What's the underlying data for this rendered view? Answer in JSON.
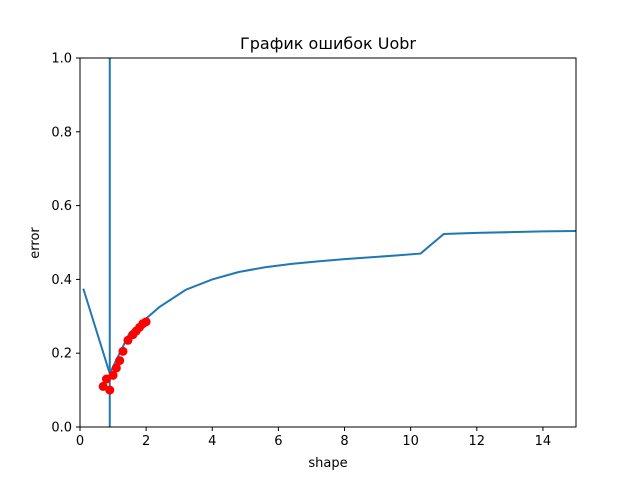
{
  "chart_data": {
    "type": "line",
    "title": "График ошибок Uobr",
    "xlabel": "shape",
    "ylabel": "error",
    "xlim": [
      0,
      15
    ],
    "ylim": [
      0,
      1
    ],
    "xticks": [
      "0",
      "2",
      "4",
      "6",
      "8",
      "10",
      "12",
      "14"
    ],
    "yticks": [
      "0.0",
      "0.2",
      "0.4",
      "0.6",
      "0.8",
      "1.0"
    ],
    "xtick_values": [
      0,
      2,
      4,
      6,
      8,
      10,
      12,
      14
    ],
    "ytick_values": [
      0.0,
      0.2,
      0.4,
      0.6,
      0.8,
      1.0
    ],
    "grid": false,
    "series": [
      {
        "kind": "line",
        "color": "#1f77b4",
        "x": [
          0.1,
          0.9,
          1.5,
          2.4,
          3.2,
          4.0,
          4.8,
          5.6,
          6.4,
          7.2,
          8.0,
          8.8,
          9.6,
          10.3,
          11.0,
          12.0,
          13.0,
          14.0,
          15.0
        ],
        "y": [
          0.375,
          0.145,
          0.255,
          0.325,
          0.372,
          0.4,
          0.42,
          0.433,
          0.442,
          0.449,
          0.455,
          0.46,
          0.465,
          0.47,
          0.523,
          0.526,
          0.528,
          0.53,
          0.531
        ]
      },
      {
        "kind": "vline",
        "color": "#1f77b4",
        "x": 0.9
      },
      {
        "kind": "scatter",
        "color": "#ff0000",
        "x": [
          0.7,
          0.8,
          0.9,
          1.0,
          1.1,
          1.2,
          1.3,
          1.45,
          1.6,
          1.7,
          1.8,
          1.9,
          2.0
        ],
        "y": [
          0.11,
          0.13,
          0.1,
          0.14,
          0.16,
          0.18,
          0.205,
          0.235,
          0.25,
          0.26,
          0.27,
          0.28,
          0.285
        ]
      }
    ]
  }
}
